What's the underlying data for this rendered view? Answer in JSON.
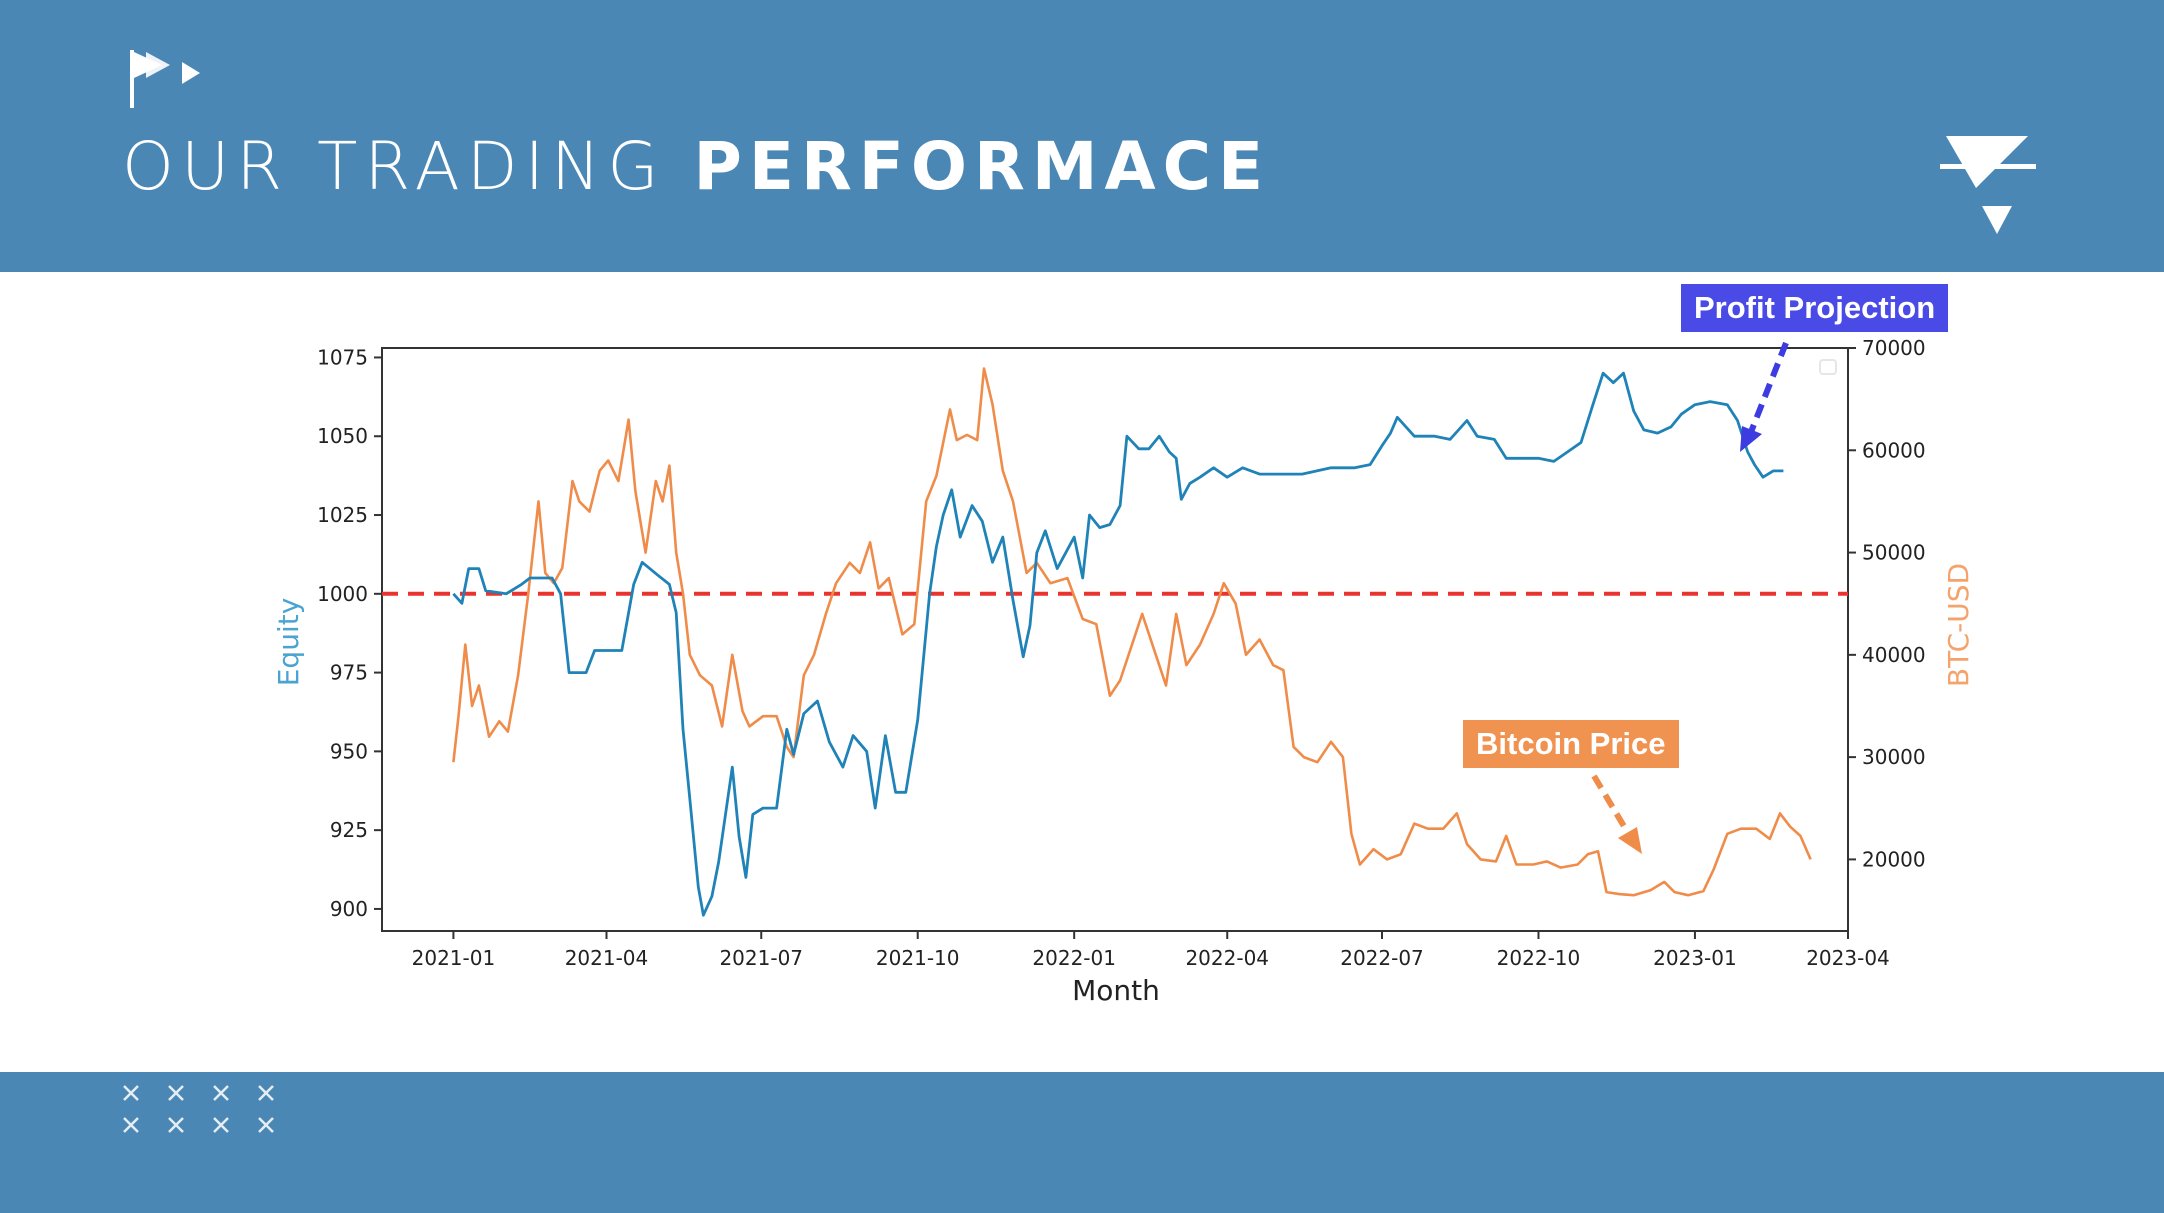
{
  "slide": {
    "title_light": "OUR TRADING ",
    "title_bold": "PERFORMACE",
    "callout_profit": "Profit Projection",
    "callout_bitcoin": "Bitcoin Price",
    "colors": {
      "band": "#4a87b5",
      "equity": "#1f83b8",
      "btc": "#f08c4a",
      "baseline": "#e8332e",
      "profit_callout": "#4a4ae6",
      "bitcoin_callout": "#f09351"
    }
  },
  "chart_data": {
    "type": "line",
    "xlabel": "Month",
    "ylabel_left": "Equity",
    "ylabel_right": "BTC-USD",
    "x_ticks": [
      "2021-01",
      "2021-04",
      "2021-07",
      "2021-10",
      "2022-01",
      "2022-04",
      "2022-07",
      "2022-10",
      "2023-01",
      "2023-04"
    ],
    "y_left_ticks": [
      900,
      925,
      950,
      975,
      1000,
      1025,
      1050,
      1075
    ],
    "y_right_ticks": [
      20000,
      30000,
      40000,
      50000,
      60000,
      70000
    ],
    "y_left_range": [
      893,
      1078
    ],
    "y_right_range": [
      13000,
      70000
    ],
    "x_range": [
      "2020-11-20",
      "2023-04-01"
    ],
    "reference_line": {
      "axis": "left",
      "value": 1000,
      "style": "dashed"
    },
    "legend": "top-right",
    "series": [
      {
        "axis": "left",
        "points": [
          [
            "2021-01-01",
            1000
          ],
          [
            "2021-01-06",
            997
          ],
          [
            "2021-01-10",
            1008
          ],
          [
            "2021-01-16",
            1008
          ],
          [
            "2021-01-20",
            1001
          ],
          [
            "2021-02-01",
            1000
          ],
          [
            "2021-02-10",
            1003
          ],
          [
            "2021-02-15",
            1005
          ],
          [
            "2021-02-28",
            1005
          ],
          [
            "2021-03-05",
            1000
          ],
          [
            "2021-03-10",
            975
          ],
          [
            "2021-03-20",
            975
          ],
          [
            "2021-03-25",
            982
          ],
          [
            "2021-04-10",
            982
          ],
          [
            "2021-04-14",
            994
          ],
          [
            "2021-04-17",
            1003
          ],
          [
            "2021-04-22",
            1010
          ],
          [
            "2021-05-01",
            1006
          ],
          [
            "2021-05-08",
            1003
          ],
          [
            "2021-05-12",
            994
          ],
          [
            "2021-05-16",
            957
          ],
          [
            "2021-05-20",
            935
          ],
          [
            "2021-05-25",
            907
          ],
          [
            "2021-05-28",
            898
          ],
          [
            "2021-06-02",
            904
          ],
          [
            "2021-06-06",
            915
          ],
          [
            "2021-06-10",
            930
          ],
          [
            "2021-06-14",
            945
          ],
          [
            "2021-06-18",
            923
          ],
          [
            "2021-06-22",
            910
          ],
          [
            "2021-06-26",
            930
          ],
          [
            "2021-07-02",
            932
          ],
          [
            "2021-07-10",
            932
          ],
          [
            "2021-07-16",
            957
          ],
          [
            "2021-07-20",
            949
          ],
          [
            "2021-07-26",
            962
          ],
          [
            "2021-08-03",
            966
          ],
          [
            "2021-08-10",
            953
          ],
          [
            "2021-08-18",
            945
          ],
          [
            "2021-08-24",
            955
          ],
          [
            "2021-09-01",
            950
          ],
          [
            "2021-09-06",
            932
          ],
          [
            "2021-09-12",
            955
          ],
          [
            "2021-09-18",
            937
          ],
          [
            "2021-09-24",
            937
          ],
          [
            "2021-10-01",
            960
          ],
          [
            "2021-10-08",
            1000
          ],
          [
            "2021-10-12",
            1015
          ],
          [
            "2021-10-16",
            1025
          ],
          [
            "2021-10-21",
            1033
          ],
          [
            "2021-10-26",
            1018
          ],
          [
            "2021-11-02",
            1028
          ],
          [
            "2021-11-08",
            1023
          ],
          [
            "2021-11-14",
            1010
          ],
          [
            "2021-11-20",
            1018
          ],
          [
            "2021-11-26",
            998
          ],
          [
            "2021-12-02",
            980
          ],
          [
            "2021-12-06",
            990
          ],
          [
            "2021-12-10",
            1013
          ],
          [
            "2021-12-15",
            1020
          ],
          [
            "2021-12-22",
            1008
          ],
          [
            "2022-01-01",
            1018
          ],
          [
            "2022-01-06",
            1005
          ],
          [
            "2022-01-10",
            1025
          ],
          [
            "2022-01-16",
            1021
          ],
          [
            "2022-01-22",
            1022
          ],
          [
            "2022-01-28",
            1028
          ],
          [
            "2022-02-01",
            1050
          ],
          [
            "2022-02-08",
            1046
          ],
          [
            "2022-02-14",
            1046
          ],
          [
            "2022-02-20",
            1050
          ],
          [
            "2022-02-26",
            1045
          ],
          [
            "2022-03-02",
            1043
          ],
          [
            "2022-03-05",
            1030
          ],
          [
            "2022-03-10",
            1035
          ],
          [
            "2022-03-16",
            1037
          ],
          [
            "2022-03-24",
            1040
          ],
          [
            "2022-04-01",
            1037
          ],
          [
            "2022-04-10",
            1040
          ],
          [
            "2022-04-20",
            1038
          ],
          [
            "2022-05-01",
            1038
          ],
          [
            "2022-05-15",
            1038
          ],
          [
            "2022-06-01",
            1040
          ],
          [
            "2022-06-15",
            1040
          ],
          [
            "2022-06-24",
            1041
          ],
          [
            "2022-07-01",
            1047
          ],
          [
            "2022-07-06",
            1051
          ],
          [
            "2022-07-10",
            1056
          ],
          [
            "2022-07-20",
            1050
          ],
          [
            "2022-08-01",
            1050
          ],
          [
            "2022-08-10",
            1049
          ],
          [
            "2022-08-20",
            1055
          ],
          [
            "2022-08-26",
            1050
          ],
          [
            "2022-09-05",
            1049
          ],
          [
            "2022-09-12",
            1043
          ],
          [
            "2022-09-20",
            1043
          ],
          [
            "2022-10-01",
            1043
          ],
          [
            "2022-10-10",
            1042
          ],
          [
            "2022-10-18",
            1045
          ],
          [
            "2022-10-26",
            1048
          ],
          [
            "2022-11-02",
            1060
          ],
          [
            "2022-11-08",
            1070
          ],
          [
            "2022-11-14",
            1067
          ],
          [
            "2022-11-20",
            1070
          ],
          [
            "2022-11-26",
            1058
          ],
          [
            "2022-12-02",
            1052
          ],
          [
            "2022-12-10",
            1051
          ],
          [
            "2022-12-18",
            1053
          ],
          [
            "2022-12-24",
            1057
          ],
          [
            "2023-01-01",
            1060
          ],
          [
            "2023-01-10",
            1061
          ],
          [
            "2023-01-20",
            1060
          ],
          [
            "2023-01-26",
            1055
          ],
          [
            "2023-02-01",
            1045
          ],
          [
            "2023-02-05",
            1041
          ],
          [
            "2023-02-10",
            1037
          ],
          [
            "2023-02-16",
            1039
          ],
          [
            "2023-02-22",
            1039
          ]
        ]
      },
      {
        "axis": "right",
        "points": [
          [
            "2021-01-01",
            29500
          ],
          [
            "2021-01-04",
            34000
          ],
          [
            "2021-01-08",
            41000
          ],
          [
            "2021-01-12",
            35000
          ],
          [
            "2021-01-16",
            37000
          ],
          [
            "2021-01-22",
            32000
          ],
          [
            "2021-01-28",
            33500
          ],
          [
            "2021-02-02",
            32500
          ],
          [
            "2021-02-08",
            38000
          ],
          [
            "2021-02-14",
            46000
          ],
          [
            "2021-02-20",
            55000
          ],
          [
            "2021-02-24",
            48000
          ],
          [
            "2021-03-01",
            47000
          ],
          [
            "2021-03-06",
            48500
          ],
          [
            "2021-03-12",
            57000
          ],
          [
            "2021-03-16",
            55000
          ],
          [
            "2021-03-22",
            54000
          ],
          [
            "2021-03-28",
            58000
          ],
          [
            "2021-04-02",
            59000
          ],
          [
            "2021-04-08",
            57000
          ],
          [
            "2021-04-14",
            63000
          ],
          [
            "2021-04-18",
            56000
          ],
          [
            "2021-04-24",
            50000
          ],
          [
            "2021-04-30",
            57000
          ],
          [
            "2021-05-04",
            55000
          ],
          [
            "2021-05-08",
            58500
          ],
          [
            "2021-05-12",
            50000
          ],
          [
            "2021-05-16",
            46000
          ],
          [
            "2021-05-20",
            40000
          ],
          [
            "2021-05-26",
            38000
          ],
          [
            "2021-06-02",
            37000
          ],
          [
            "2021-06-08",
            33000
          ],
          [
            "2021-06-14",
            40000
          ],
          [
            "2021-06-20",
            34500
          ],
          [
            "2021-06-24",
            33000
          ],
          [
            "2021-07-02",
            34000
          ],
          [
            "2021-07-10",
            34000
          ],
          [
            "2021-07-16",
            31000
          ],
          [
            "2021-07-20",
            30000
          ],
          [
            "2021-07-26",
            38000
          ],
          [
            "2021-08-01",
            40000
          ],
          [
            "2021-08-08",
            44000
          ],
          [
            "2021-08-14",
            47000
          ],
          [
            "2021-08-22",
            49000
          ],
          [
            "2021-08-28",
            48000
          ],
          [
            "2021-09-03",
            51000
          ],
          [
            "2021-09-08",
            46500
          ],
          [
            "2021-09-14",
            47500
          ],
          [
            "2021-09-22",
            42000
          ],
          [
            "2021-09-29",
            43000
          ],
          [
            "2021-10-06",
            55000
          ],
          [
            "2021-10-12",
            57500
          ],
          [
            "2021-10-20",
            64000
          ],
          [
            "2021-10-24",
            61000
          ],
          [
            "2021-10-30",
            61500
          ],
          [
            "2021-11-05",
            61000
          ],
          [
            "2021-11-09",
            68000
          ],
          [
            "2021-11-14",
            64500
          ],
          [
            "2021-11-20",
            58000
          ],
          [
            "2021-11-26",
            55000
          ],
          [
            "2021-12-04",
            48000
          ],
          [
            "2021-12-10",
            49000
          ],
          [
            "2021-12-18",
            47000
          ],
          [
            "2021-12-28",
            47500
          ],
          [
            "2022-01-06",
            43500
          ],
          [
            "2022-01-14",
            43000
          ],
          [
            "2022-01-22",
            36000
          ],
          [
            "2022-01-28",
            37500
          ],
          [
            "2022-02-06",
            42000
          ],
          [
            "2022-02-10",
            44000
          ],
          [
            "2022-02-18",
            40000
          ],
          [
            "2022-02-24",
            37000
          ],
          [
            "2022-03-02",
            44000
          ],
          [
            "2022-03-08",
            39000
          ],
          [
            "2022-03-16",
            41000
          ],
          [
            "2022-03-24",
            44000
          ],
          [
            "2022-03-30",
            47000
          ],
          [
            "2022-04-06",
            45000
          ],
          [
            "2022-04-12",
            40000
          ],
          [
            "2022-04-20",
            41500
          ],
          [
            "2022-04-28",
            39000
          ],
          [
            "2022-05-04",
            38500
          ],
          [
            "2022-05-10",
            31000
          ],
          [
            "2022-05-16",
            30000
          ],
          [
            "2022-05-24",
            29500
          ],
          [
            "2022-06-01",
            31500
          ],
          [
            "2022-06-08",
            30000
          ],
          [
            "2022-06-13",
            22500
          ],
          [
            "2022-06-18",
            19500
          ],
          [
            "2022-06-26",
            21000
          ],
          [
            "2022-07-04",
            20000
          ],
          [
            "2022-07-12",
            20500
          ],
          [
            "2022-07-20",
            23500
          ],
          [
            "2022-07-28",
            23000
          ],
          [
            "2022-08-06",
            23000
          ],
          [
            "2022-08-14",
            24500
          ],
          [
            "2022-08-20",
            21500
          ],
          [
            "2022-08-28",
            20000
          ],
          [
            "2022-09-06",
            19800
          ],
          [
            "2022-09-12",
            22300
          ],
          [
            "2022-09-18",
            19500
          ],
          [
            "2022-09-28",
            19500
          ],
          [
            "2022-10-06",
            19800
          ],
          [
            "2022-10-14",
            19200
          ],
          [
            "2022-10-24",
            19500
          ],
          [
            "2022-10-30",
            20500
          ],
          [
            "2022-11-05",
            20800
          ],
          [
            "2022-11-10",
            16800
          ],
          [
            "2022-11-18",
            16600
          ],
          [
            "2022-11-26",
            16500
          ],
          [
            "2022-12-06",
            17000
          ],
          [
            "2022-12-14",
            17800
          ],
          [
            "2022-12-20",
            16800
          ],
          [
            "2022-12-28",
            16500
          ],
          [
            "2023-01-06",
            16900
          ],
          [
            "2023-01-12",
            19000
          ],
          [
            "2023-01-20",
            22500
          ],
          [
            "2023-01-28",
            23000
          ],
          [
            "2023-02-06",
            23000
          ],
          [
            "2023-02-14",
            22000
          ],
          [
            "2023-02-20",
            24500
          ],
          [
            "2023-02-26",
            23200
          ],
          [
            "2023-03-04",
            22300
          ],
          [
            "2023-03-10",
            20000
          ]
        ]
      }
    ]
  }
}
